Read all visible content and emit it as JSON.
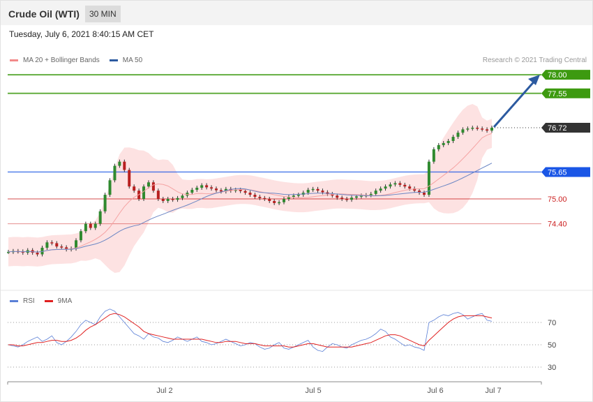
{
  "header": {
    "title": "Crude Oil (WTI)",
    "timeframe": "30 MIN"
  },
  "timestamp": "Tuesday, July 6, 2021 8:40:15 AM CET",
  "legend": {
    "ma20_label": "MA 20 + Bollinger Bands",
    "ma50_label": "MA 50",
    "ma20_color": "#f28a8a",
    "ma50_color": "#2c5aa0"
  },
  "credit": "Research © 2021 Trading Central",
  "rsi_legend": {
    "rsi_label": "RSI",
    "ma_label": "9MA",
    "rsi_color": "#5a7fd6",
    "ma_color": "#e02020"
  },
  "x_axis_labels": [
    "Jul 2",
    "Jul 5",
    "Jul 6",
    "Jul 7"
  ],
  "chart_data": [
    {
      "type": "candlestick",
      "title": "",
      "ylim": [
        73.3,
        78.3
      ],
      "levels": [
        {
          "value": 78.0,
          "label": "78.00",
          "color": "#3d9a10",
          "style": "target"
        },
        {
          "value": 77.55,
          "label": "77.55",
          "color": "#3d9a10",
          "style": "target"
        },
        {
          "value": 76.72,
          "label": "76.72",
          "color": "#333333",
          "style": "last"
        },
        {
          "value": 75.65,
          "label": "75.65",
          "color": "#1a56e6",
          "style": "pivot"
        },
        {
          "value": 75.0,
          "label": "75.00",
          "color": "#cc2020",
          "style": "support"
        },
        {
          "value": 74.4,
          "label": "74.40",
          "color": "#cc2020",
          "style": "support"
        }
      ],
      "close_series": [
        73.72,
        73.74,
        73.73,
        73.7,
        73.76,
        73.7,
        73.66,
        73.82,
        73.95,
        73.93,
        73.85,
        73.83,
        73.78,
        73.8,
        74.0,
        74.22,
        74.4,
        74.3,
        74.4,
        74.7,
        75.1,
        75.45,
        75.8,
        75.9,
        75.7,
        75.3,
        75.2,
        75.0,
        75.3,
        75.4,
        75.2,
        75.0,
        74.95,
        75.0,
        74.98,
        75.02,
        75.08,
        75.15,
        75.22,
        75.27,
        75.33,
        75.28,
        75.25,
        75.21,
        75.18,
        75.24,
        75.2,
        75.22,
        75.19,
        75.15,
        75.1,
        75.05,
        75.02,
        75.0,
        74.95,
        74.9,
        74.92,
        75.0,
        75.05,
        75.08,
        75.1,
        75.15,
        75.22,
        75.24,
        75.2,
        75.16,
        75.12,
        75.08,
        75.03,
        75.0,
        74.98,
        75.03,
        75.06,
        75.08,
        75.09,
        75.12,
        75.2,
        75.25,
        75.3,
        75.35,
        75.38,
        75.34,
        75.3,
        75.25,
        75.2,
        75.15,
        75.1,
        75.9,
        76.2,
        76.3,
        76.35,
        76.4,
        76.5,
        76.6,
        76.68,
        76.7,
        76.72,
        76.7,
        76.68,
        76.65,
        76.72
      ],
      "ma20_label": "MA 20 + Bollinger Bands",
      "ma50_label": "MA 50"
    },
    {
      "type": "line",
      "title": "",
      "ylim": [
        20,
        85
      ],
      "yticks": [
        30,
        50,
        70
      ],
      "series": [
        {
          "name": "RSI",
          "values": [
            50,
            49,
            48,
            50,
            53,
            55,
            57,
            53,
            55,
            58,
            52,
            50,
            53,
            57,
            62,
            68,
            72,
            70,
            68,
            75,
            80,
            82,
            80,
            75,
            70,
            65,
            60,
            58,
            55,
            60,
            57,
            56,
            53,
            52,
            54,
            57,
            55,
            53,
            55,
            57,
            53,
            52,
            50,
            51,
            53,
            55,
            53,
            51,
            49,
            50,
            52,
            51,
            48,
            46,
            47,
            50,
            52,
            47,
            46,
            48,
            50,
            52,
            54,
            48,
            45,
            44,
            48,
            51,
            50,
            48,
            47,
            50,
            52,
            54,
            55,
            57,
            60,
            64,
            62,
            57,
            55,
            52,
            49,
            50,
            48,
            47,
            45,
            70,
            72,
            75,
            77,
            76,
            78,
            79,
            77,
            73,
            75,
            77,
            78,
            72,
            71
          ]
        },
        {
          "name": "9MA",
          "values": [
            50,
            50,
            49,
            49,
            50,
            51,
            52,
            52,
            53,
            54,
            54,
            53,
            53,
            54,
            56,
            59,
            63,
            66,
            68,
            71,
            74,
            77,
            78,
            77,
            75,
            72,
            69,
            66,
            62,
            60,
            59,
            58,
            57,
            56,
            55,
            55,
            55,
            55,
            55,
            55,
            55,
            54,
            53,
            52,
            52,
            53,
            53,
            53,
            52,
            51,
            51,
            51,
            50,
            49,
            49,
            49,
            49,
            49,
            48,
            48,
            49,
            50,
            51,
            51,
            50,
            49,
            48,
            48,
            48,
            48,
            48,
            48,
            49,
            50,
            51,
            52,
            54,
            56,
            58,
            59,
            59,
            58,
            56,
            54,
            52,
            50,
            49,
            54,
            58,
            62,
            66,
            70,
            73,
            75,
            76,
            76,
            76,
            76,
            76,
            75,
            74
          ]
        }
      ]
    }
  ]
}
